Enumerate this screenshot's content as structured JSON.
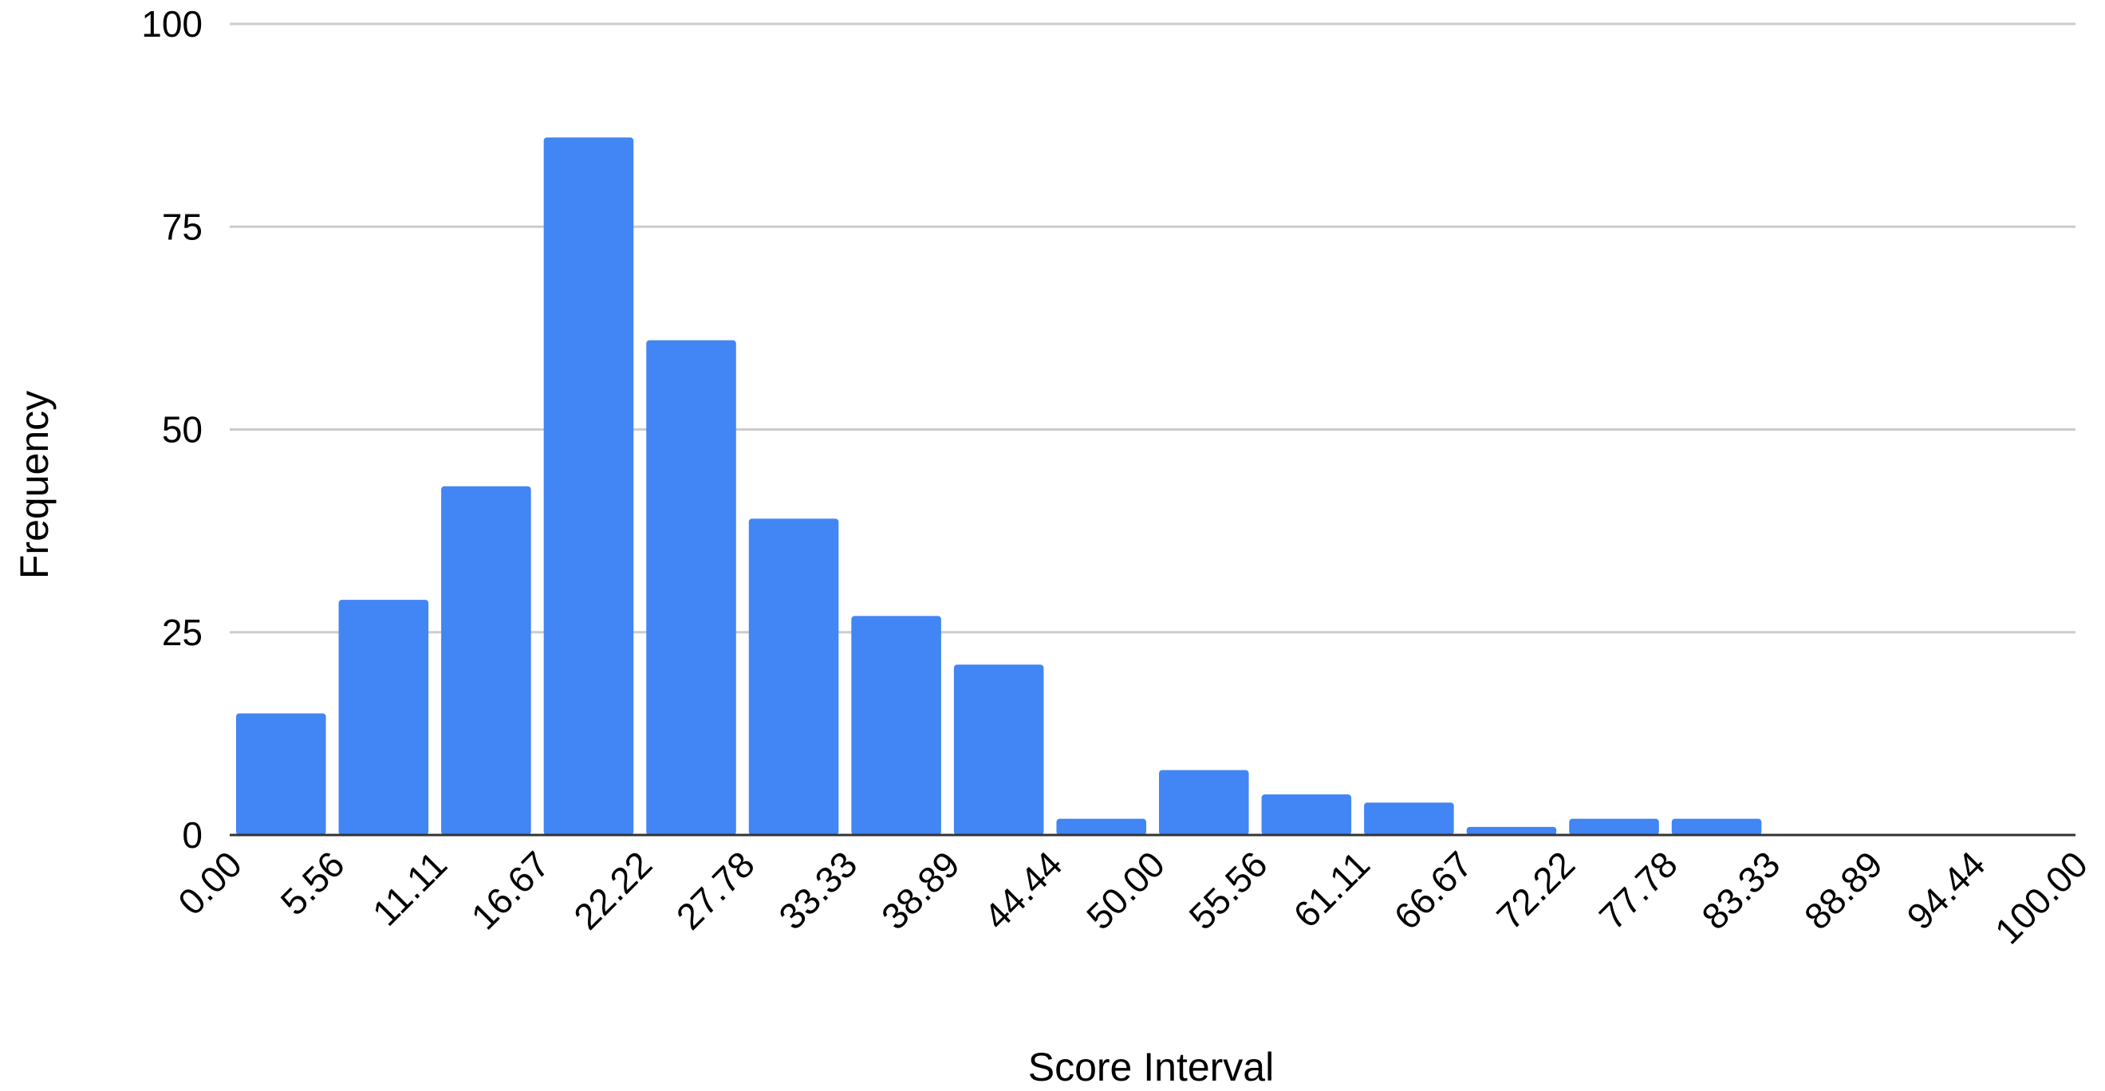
{
  "chart_data": {
    "type": "bar",
    "title": "",
    "xlabel": "Score Interval",
    "ylabel": "Frequency",
    "ylim": [
      0,
      100
    ],
    "yticks": [
      "0",
      "25",
      "50",
      "75",
      "100"
    ],
    "xticks": [
      "0.00",
      "5.56",
      "11.11",
      "16.67",
      "22.22",
      "27.78",
      "33.33",
      "38.89",
      "44.44",
      "50.00",
      "55.56",
      "61.11",
      "66.67",
      "72.22",
      "77.78",
      "83.33",
      "88.89",
      "94.44",
      "100.00"
    ],
    "bins": [
      {
        "start": 0.0,
        "end": 5.56,
        "value": 15
      },
      {
        "start": 5.56,
        "end": 11.11,
        "value": 29
      },
      {
        "start": 11.11,
        "end": 16.67,
        "value": 43
      },
      {
        "start": 16.67,
        "end": 22.22,
        "value": 86
      },
      {
        "start": 22.22,
        "end": 27.78,
        "value": 61
      },
      {
        "start": 27.78,
        "end": 33.33,
        "value": 39
      },
      {
        "start": 33.33,
        "end": 38.89,
        "value": 27
      },
      {
        "start": 38.89,
        "end": 44.44,
        "value": 21
      },
      {
        "start": 44.44,
        "end": 50.0,
        "value": 2
      },
      {
        "start": 50.0,
        "end": 55.56,
        "value": 8
      },
      {
        "start": 55.56,
        "end": 61.11,
        "value": 5
      },
      {
        "start": 61.11,
        "end": 66.67,
        "value": 4
      },
      {
        "start": 66.67,
        "end": 72.22,
        "value": 1
      },
      {
        "start": 72.22,
        "end": 77.78,
        "value": 2
      },
      {
        "start": 77.78,
        "end": 83.33,
        "value": 2
      },
      {
        "start": 83.33,
        "end": 88.89,
        "value": 0
      },
      {
        "start": 88.89,
        "end": 94.44,
        "value": 0
      },
      {
        "start": 94.44,
        "end": 100.0,
        "value": 0
      }
    ],
    "colors": {
      "bar": "#4285f4",
      "grid": "#cccccc",
      "axis": "#333333"
    },
    "grid": true,
    "legend": "none"
  }
}
